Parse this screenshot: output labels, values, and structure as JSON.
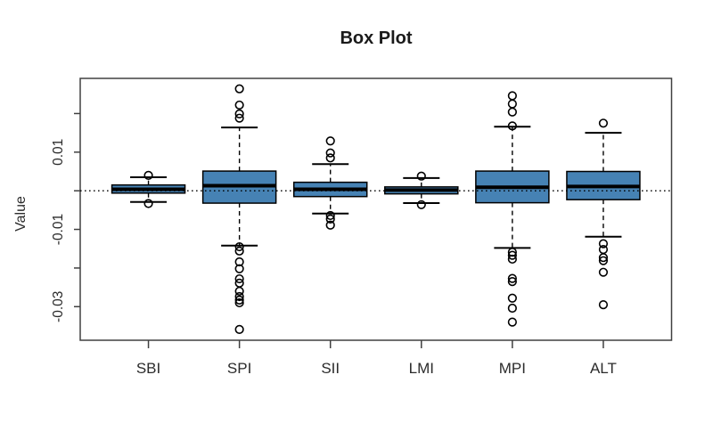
{
  "chart_data": {
    "type": "boxplot",
    "title": "Box Plot",
    "ylabel": "Value",
    "xlabel": "",
    "categories": [
      "SBI",
      "SPI",
      "SII",
      "LMI",
      "MPI",
      "ALT"
    ],
    "ylim": [
      -0.0387,
      0.0291
    ],
    "y_ticks": [
      {
        "value": 0.02,
        "label": ""
      },
      {
        "value": 0.01,
        "label": "0.01"
      },
      {
        "value": 0.0,
        "label": ""
      },
      {
        "value": -0.01,
        "label": "-0.01"
      },
      {
        "value": -0.02,
        "label": ""
      },
      {
        "value": -0.03,
        "label": "-0.03"
      }
    ],
    "reference_line": {
      "y": 0,
      "style": "dotted",
      "color": "#000000"
    },
    "legend": "none",
    "grid": false,
    "colors": {
      "box_fill": "#4682B4",
      "box_border": "#000000",
      "median": "#000000",
      "axis": "#404040",
      "text": "#2b2b2b"
    },
    "series": [
      {
        "name": "SBI",
        "whisker_low": -0.0029,
        "q1": -0.0006,
        "median": 0.0004,
        "q3": 0.0015,
        "whisker_high": 0.0035,
        "outliers": [
          0.004,
          -0.0033
        ]
      },
      {
        "name": "SPI",
        "whisker_low": -0.0142,
        "q1": -0.0032,
        "median": 0.0013,
        "q3": 0.0051,
        "whisker_high": 0.0164,
        "outliers": [
          0.0264,
          0.0222,
          0.0199,
          0.0188,
          -0.0145,
          -0.0156,
          -0.0184,
          -0.0202,
          -0.0228,
          -0.0239,
          -0.026,
          -0.0274,
          -0.0283,
          -0.029,
          -0.0359
        ]
      },
      {
        "name": "SII",
        "whisker_low": -0.0059,
        "q1": -0.0015,
        "median": 0.0004,
        "q3": 0.0022,
        "whisker_high": 0.0069,
        "outliers": [
          0.0129,
          0.0098,
          0.0085,
          -0.0064,
          -0.0073,
          -0.0089
        ]
      },
      {
        "name": "LMI",
        "whisker_low": -0.0032,
        "q1": -0.0008,
        "median": 0.0002,
        "q3": 0.001,
        "whisker_high": 0.0033,
        "outliers": [
          0.0038,
          -0.0036
        ]
      },
      {
        "name": "MPI",
        "whisker_low": -0.0148,
        "q1": -0.0031,
        "median": 0.0009,
        "q3": 0.0051,
        "whisker_high": 0.0166,
        "outliers": [
          0.0246,
          0.0225,
          0.0204,
          0.0168,
          -0.0159,
          -0.0167,
          -0.0177,
          -0.0227,
          -0.0235,
          -0.0278,
          -0.0304,
          -0.034
        ]
      },
      {
        "name": "ALT",
        "whisker_low": -0.0119,
        "q1": -0.0023,
        "median": 0.0011,
        "q3": 0.005,
        "whisker_high": 0.015,
        "outliers": [
          0.0175,
          -0.0137,
          -0.0152,
          -0.0173,
          -0.0181,
          -0.0211,
          -0.0295
        ]
      }
    ]
  }
}
